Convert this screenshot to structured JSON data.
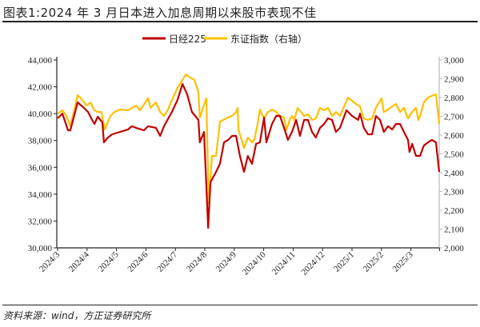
{
  "title": "图表1:2024 年 3 月日本进入加息周期以来股市表现不佳",
  "source": "资料来源：wind，方正证券研究所",
  "chart_data": {
    "type": "line",
    "title": "图表1:2024 年 3 月日本进入加息周期以来股市表现不佳",
    "x_unit": "months since 2024/3",
    "x_tick_labels": [
      "2024/3",
      "2024/4",
      "2024/5",
      "2024/6",
      "2024/7",
      "2024/8",
      "2024/9",
      "2024/10",
      "2024/11",
      "2024/12",
      "2025/1",
      "2025/2",
      "2025/3"
    ],
    "y_left": {
      "ylim": [
        30000,
        44000
      ],
      "ticks": [
        "30,000",
        "32,000",
        "34,000",
        "36,000",
        "38,000",
        "40,000",
        "42,000",
        "44,000"
      ]
    },
    "y_right": {
      "ylim": [
        2000,
        3000
      ],
      "ticks": [
        "2,000",
        "2,100",
        "2,200",
        "2,300",
        "2,400",
        "2,500",
        "2,600",
        "2,700",
        "2,800",
        "2,900",
        "3,000"
      ]
    },
    "legend_position": "top-center",
    "grid": false,
    "series": [
      {
        "name": "日经225",
        "axis": "left",
        "color": "#C00000",
        "points": [
          [
            0.03,
            39650
          ],
          [
            0.19,
            40010
          ],
          [
            0.38,
            38760
          ],
          [
            0.46,
            38760
          ],
          [
            0.71,
            40840
          ],
          [
            0.92,
            40430
          ],
          [
            1.06,
            40130
          ],
          [
            1.2,
            39530
          ],
          [
            1.28,
            39230
          ],
          [
            1.39,
            39770
          ],
          [
            1.55,
            39350
          ],
          [
            1.6,
            37860
          ],
          [
            1.74,
            38220
          ],
          [
            1.88,
            38460
          ],
          [
            2.15,
            38640
          ],
          [
            2.42,
            38820
          ],
          [
            2.55,
            39060
          ],
          [
            2.69,
            38940
          ],
          [
            2.96,
            38760
          ],
          [
            3.1,
            39060
          ],
          [
            3.37,
            38940
          ],
          [
            3.51,
            38340
          ],
          [
            3.64,
            39060
          ],
          [
            3.91,
            40130
          ],
          [
            4.1,
            41020
          ],
          [
            4.27,
            42210
          ],
          [
            4.43,
            41440
          ],
          [
            4.59,
            40130
          ],
          [
            4.81,
            39530
          ],
          [
            4.86,
            37860
          ],
          [
            5.0,
            38640
          ],
          [
            5.14,
            31490
          ],
          [
            5.22,
            34890
          ],
          [
            5.41,
            35660
          ],
          [
            5.54,
            36260
          ],
          [
            5.68,
            37860
          ],
          [
            5.82,
            38040
          ],
          [
            5.95,
            38340
          ],
          [
            6.09,
            38340
          ],
          [
            6.22,
            36850
          ],
          [
            6.36,
            35660
          ],
          [
            6.49,
            36850
          ],
          [
            6.63,
            36260
          ],
          [
            6.77,
            37750
          ],
          [
            6.9,
            37860
          ],
          [
            7.04,
            39710
          ],
          [
            7.12,
            37860
          ],
          [
            7.31,
            39230
          ],
          [
            7.45,
            39830
          ],
          [
            7.58,
            39830
          ],
          [
            7.72,
            38940
          ],
          [
            7.85,
            38040
          ],
          [
            7.99,
            38640
          ],
          [
            8.13,
            39530
          ],
          [
            8.26,
            38340
          ],
          [
            8.4,
            39530
          ],
          [
            8.53,
            39530
          ],
          [
            8.67,
            38640
          ],
          [
            8.8,
            38220
          ],
          [
            8.94,
            38940
          ],
          [
            9.08,
            39230
          ],
          [
            9.21,
            39650
          ],
          [
            9.35,
            39530
          ],
          [
            9.48,
            38640
          ],
          [
            9.62,
            38940
          ],
          [
            9.84,
            40250
          ],
          [
            10.03,
            39830
          ],
          [
            10.24,
            39530
          ],
          [
            10.3,
            40010
          ],
          [
            10.43,
            38940
          ],
          [
            10.57,
            38460
          ],
          [
            10.71,
            38460
          ],
          [
            10.84,
            39830
          ],
          [
            10.98,
            39530
          ],
          [
            11.11,
            38640
          ],
          [
            11.25,
            39060
          ],
          [
            11.39,
            38820
          ],
          [
            11.52,
            39230
          ],
          [
            11.66,
            39230
          ],
          [
            11.79,
            38640
          ],
          [
            11.93,
            38040
          ],
          [
            11.98,
            37150
          ],
          [
            12.07,
            37750
          ],
          [
            12.2,
            36850
          ],
          [
            12.34,
            36850
          ],
          [
            12.47,
            37630
          ],
          [
            12.61,
            37860
          ],
          [
            12.74,
            38040
          ],
          [
            12.88,
            37860
          ],
          [
            12.99,
            35660
          ]
        ]
      },
      {
        "name": "东证指数（右轴）",
        "axis": "right",
        "color": "#FFC000",
        "points": [
          [
            0.03,
            2715
          ],
          [
            0.19,
            2732
          ],
          [
            0.33,
            2702
          ],
          [
            0.46,
            2647
          ],
          [
            0.71,
            2813
          ],
          [
            0.87,
            2787
          ],
          [
            1.01,
            2757
          ],
          [
            1.14,
            2774
          ],
          [
            1.28,
            2732
          ],
          [
            1.39,
            2723
          ],
          [
            1.52,
            2723
          ],
          [
            1.63,
            2630
          ],
          [
            1.82,
            2702
          ],
          [
            1.96,
            2723
          ],
          [
            2.15,
            2736
          ],
          [
            2.42,
            2732
          ],
          [
            2.55,
            2745
          ],
          [
            2.69,
            2757
          ],
          [
            2.83,
            2732
          ],
          [
            3.1,
            2796
          ],
          [
            3.18,
            2745
          ],
          [
            3.37,
            2774
          ],
          [
            3.51,
            2723
          ],
          [
            3.64,
            2702
          ],
          [
            3.78,
            2736
          ],
          [
            3.91,
            2787
          ],
          [
            4.1,
            2851
          ],
          [
            4.27,
            2894
          ],
          [
            4.38,
            2923
          ],
          [
            4.54,
            2906
          ],
          [
            4.67,
            2894
          ],
          [
            4.81,
            2830
          ],
          [
            4.86,
            2694
          ],
          [
            5.08,
            2796
          ],
          [
            5.16,
            2234
          ],
          [
            5.27,
            2489
          ],
          [
            5.41,
            2489
          ],
          [
            5.54,
            2672
          ],
          [
            5.82,
            2694
          ],
          [
            5.95,
            2702
          ],
          [
            6.09,
            2723
          ],
          [
            6.14,
            2745
          ],
          [
            6.17,
            2626
          ],
          [
            6.22,
            2604
          ],
          [
            6.36,
            2532
          ],
          [
            6.49,
            2587
          ],
          [
            6.63,
            2562
          ],
          [
            6.71,
            2574
          ],
          [
            6.82,
            2660
          ],
          [
            6.9,
            2736
          ],
          [
            7.04,
            2689
          ],
          [
            7.17,
            2723
          ],
          [
            7.31,
            2736
          ],
          [
            7.45,
            2723
          ],
          [
            7.58,
            2702
          ],
          [
            7.72,
            2694
          ],
          [
            7.8,
            2626
          ],
          [
            7.91,
            2681
          ],
          [
            7.99,
            2702
          ],
          [
            8.07,
            2681
          ],
          [
            8.18,
            2745
          ],
          [
            8.4,
            2702
          ],
          [
            8.53,
            2711
          ],
          [
            8.67,
            2681
          ],
          [
            8.8,
            2689
          ],
          [
            8.94,
            2745
          ],
          [
            9.08,
            2732
          ],
          [
            9.21,
            2745
          ],
          [
            9.35,
            2702
          ],
          [
            9.48,
            2723
          ],
          [
            9.62,
            2702
          ],
          [
            9.89,
            2800
          ],
          [
            10.16,
            2766
          ],
          [
            10.3,
            2753
          ],
          [
            10.43,
            2689
          ],
          [
            10.57,
            2681
          ],
          [
            10.71,
            2689
          ],
          [
            10.84,
            2745
          ],
          [
            11.03,
            2796
          ],
          [
            11.11,
            2723
          ],
          [
            11.25,
            2736
          ],
          [
            11.39,
            2753
          ],
          [
            11.52,
            2766
          ],
          [
            11.66,
            2723
          ],
          [
            11.79,
            2745
          ],
          [
            11.93,
            2689
          ],
          [
            12.07,
            2723
          ],
          [
            12.2,
            2745
          ],
          [
            12.28,
            2681
          ],
          [
            12.34,
            2702
          ],
          [
            12.47,
            2774
          ],
          [
            12.61,
            2800
          ],
          [
            12.74,
            2809
          ],
          [
            12.88,
            2817
          ],
          [
            12.99,
            2660
          ]
        ]
      }
    ]
  }
}
